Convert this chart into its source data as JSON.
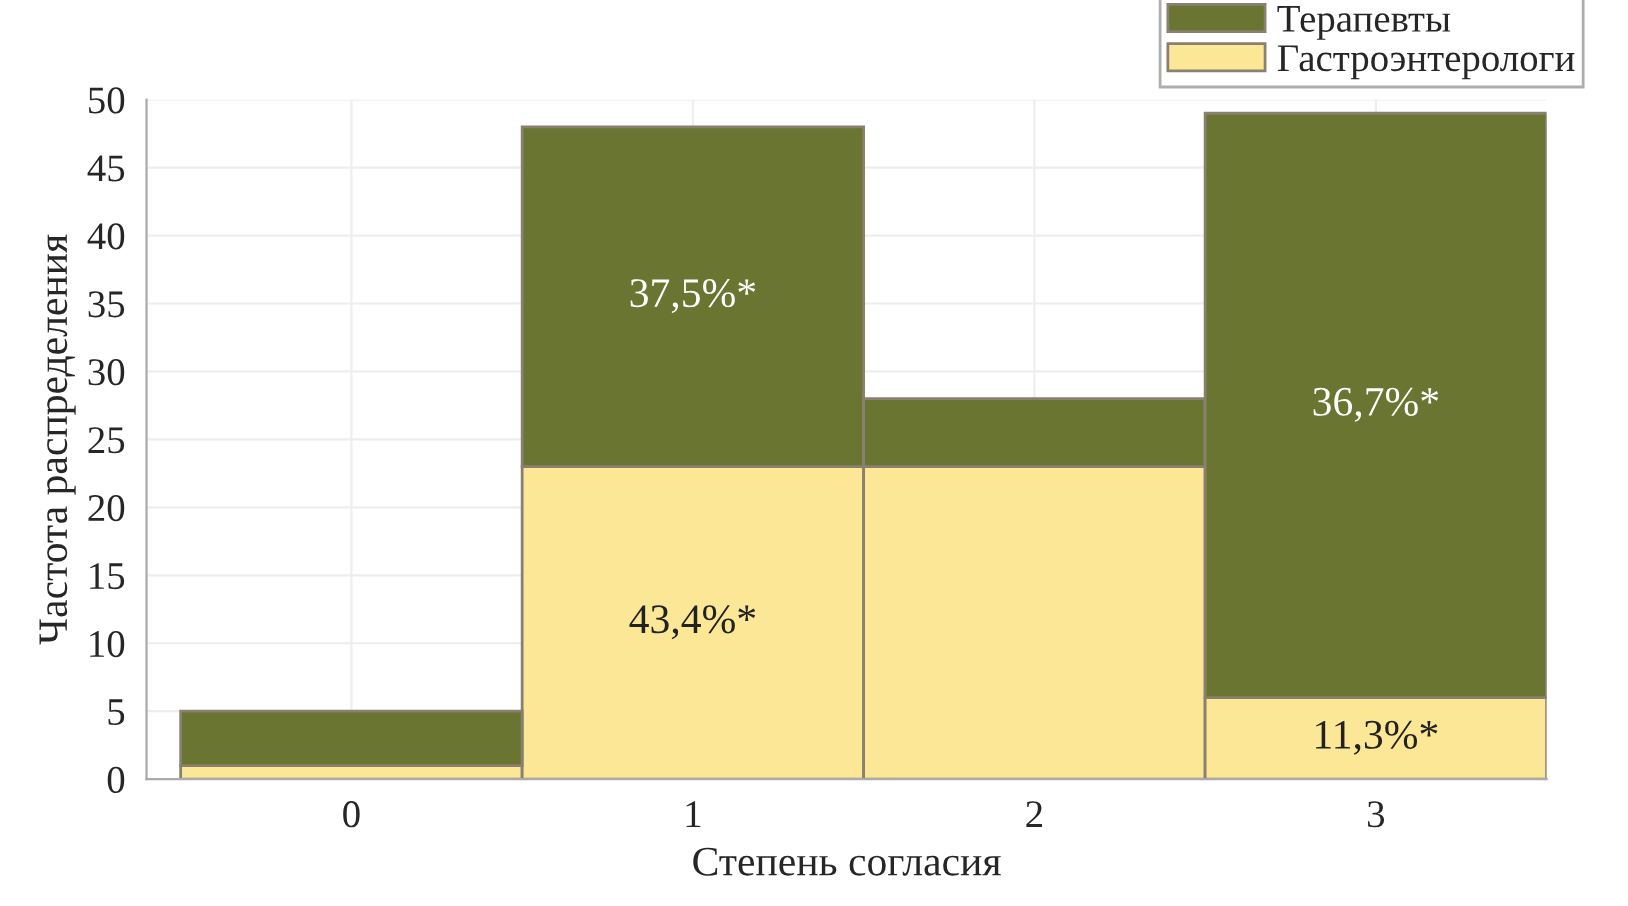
{
  "chart_data": {
    "type": "bar",
    "stacked": true,
    "xlabel": "Степень согласия",
    "ylabel": "Частота распределения",
    "categories": [
      "0",
      "1",
      "2",
      "3"
    ],
    "series": [
      {
        "name": "Гастроэнтерологи",
        "color": "#fbe796",
        "values": [
          1,
          23,
          23,
          6
        ]
      },
      {
        "name": "Терапевты",
        "color": "#6b7532",
        "values": [
          4,
          25,
          5,
          43
        ]
      }
    ],
    "annotations": [
      "37,5%*",
      "43,4%*",
      "36,7%*",
      "11,3%*"
    ],
    "ylim": [
      0,
      50
    ],
    "yticks": [
      0,
      5,
      10,
      15,
      20,
      25,
      30,
      35,
      40,
      45,
      50
    ],
    "grid": true,
    "legend": "top right"
  }
}
